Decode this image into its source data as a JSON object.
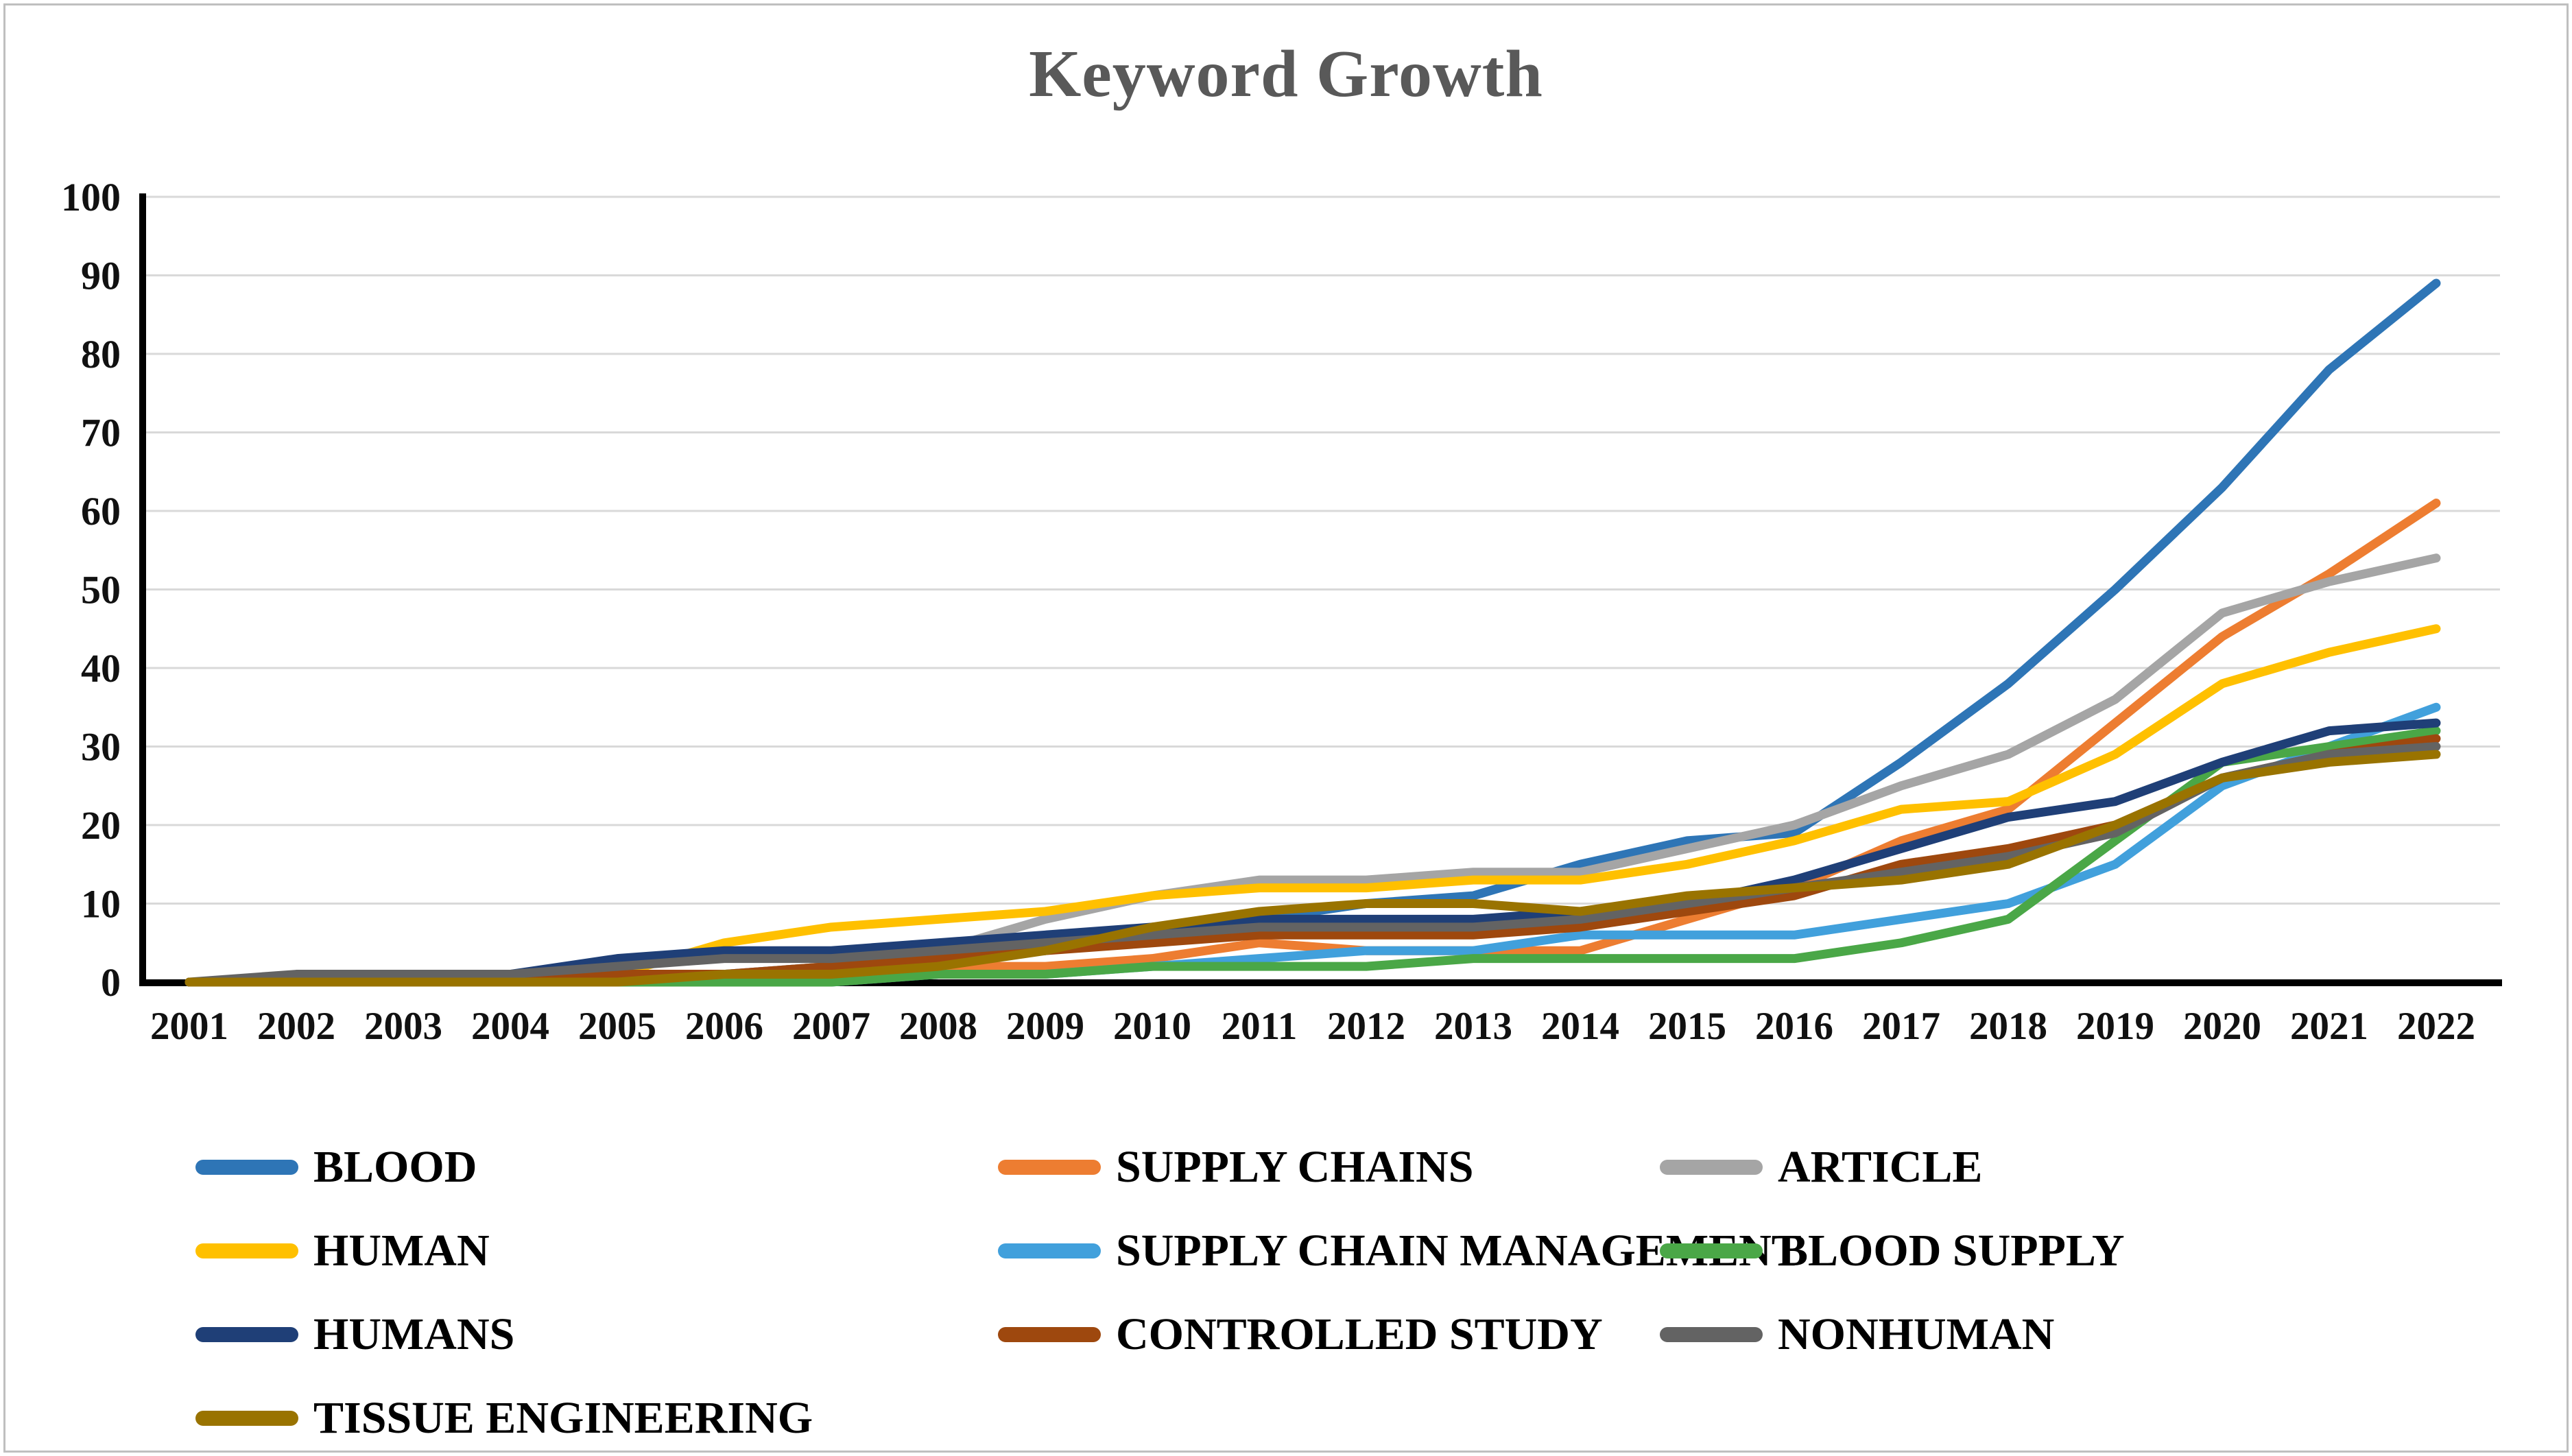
{
  "chart_data": {
    "type": "line",
    "title": "Keyword Growth",
    "title_color": "#595959",
    "categories": [
      "2001",
      "2002",
      "2003",
      "2004",
      "2005",
      "2006",
      "2007",
      "2008",
      "2009",
      "2010",
      "2011",
      "2012",
      "2013",
      "2014",
      "2015",
      "2016",
      "2017",
      "2018",
      "2019",
      "2020",
      "2021",
      "2022"
    ],
    "xlabel": "",
    "ylabel": "",
    "y_axis": {
      "min": 0,
      "max": 100,
      "step": 10
    },
    "ylim": [
      0,
      100
    ],
    "grid": true,
    "gridline_color": "#d9d9d9",
    "axis_color": "#000000",
    "legend_position": "bottom",
    "series": [
      {
        "name": "BLOOD",
        "color": "#2e75b6",
        "values": [
          0,
          0,
          0,
          0,
          1,
          1,
          2,
          3,
          4,
          6,
          8,
          10,
          11,
          15,
          18,
          19,
          28,
          38,
          50,
          63,
          78,
          89
        ]
      },
      {
        "name": "SUPPLY CHAINS",
        "color": "#ed7d31",
        "values": [
          0,
          0,
          0,
          0,
          0,
          1,
          1,
          2,
          2,
          3,
          5,
          4,
          4,
          4,
          8,
          12,
          18,
          22,
          33,
          44,
          52,
          61
        ]
      },
      {
        "name": "ARTICLE",
        "color": "#a5a5a5",
        "values": [
          0,
          0,
          0,
          0,
          0,
          1,
          2,
          4,
          8,
          11,
          13,
          13,
          14,
          14,
          17,
          20,
          25,
          29,
          36,
          47,
          51,
          54
        ]
      },
      {
        "name": "HUMAN",
        "color": "#ffc000",
        "values": [
          0,
          0,
          0,
          0,
          1,
          5,
          7,
          8,
          9,
          11,
          12,
          12,
          13,
          13,
          15,
          18,
          22,
          23,
          29,
          38,
          42,
          45
        ]
      },
      {
        "name": "SUPPLY CHAIN MANAGEMENT",
        "color": "#41a0dc",
        "values": [
          0,
          0,
          0,
          0,
          0,
          0,
          0,
          1,
          1,
          2,
          3,
          4,
          4,
          6,
          6,
          6,
          8,
          10,
          15,
          25,
          30,
          35
        ]
      },
      {
        "name": "BLOOD SUPPLY",
        "color": "#4aa747",
        "values": [
          0,
          0,
          0,
          0,
          0,
          0,
          0,
          1,
          1,
          2,
          2,
          2,
          3,
          3,
          3,
          3,
          5,
          8,
          18,
          28,
          30,
          32
        ]
      },
      {
        "name": "HUMANS",
        "color": "#1f3f77",
        "values": [
          0,
          0,
          0,
          1,
          3,
          4,
          4,
          5,
          6,
          7,
          8,
          8,
          8,
          9,
          10,
          13,
          17,
          21,
          23,
          28,
          32,
          33
        ]
      },
      {
        "name": "CONTROLLED STUDY",
        "color": "#9e480e",
        "values": [
          0,
          0,
          0,
          0,
          1,
          1,
          2,
          3,
          4,
          5,
          6,
          6,
          6,
          7,
          9,
          11,
          15,
          17,
          20,
          26,
          29,
          31
        ]
      },
      {
        "name": "NONHUMAN",
        "color": "#636363",
        "values": [
          0,
          1,
          1,
          1,
          2,
          3,
          3,
          4,
          5,
          6,
          7,
          7,
          7,
          8,
          10,
          12,
          14,
          16,
          19,
          26,
          29,
          30
        ]
      },
      {
        "name": "TISSUE ENGINEERING",
        "color": "#997300",
        "values": [
          0,
          0,
          0,
          0,
          0,
          1,
          1,
          2,
          4,
          7,
          9,
          10,
          10,
          9,
          11,
          12,
          13,
          15,
          20,
          26,
          28,
          29
        ]
      }
    ]
  }
}
